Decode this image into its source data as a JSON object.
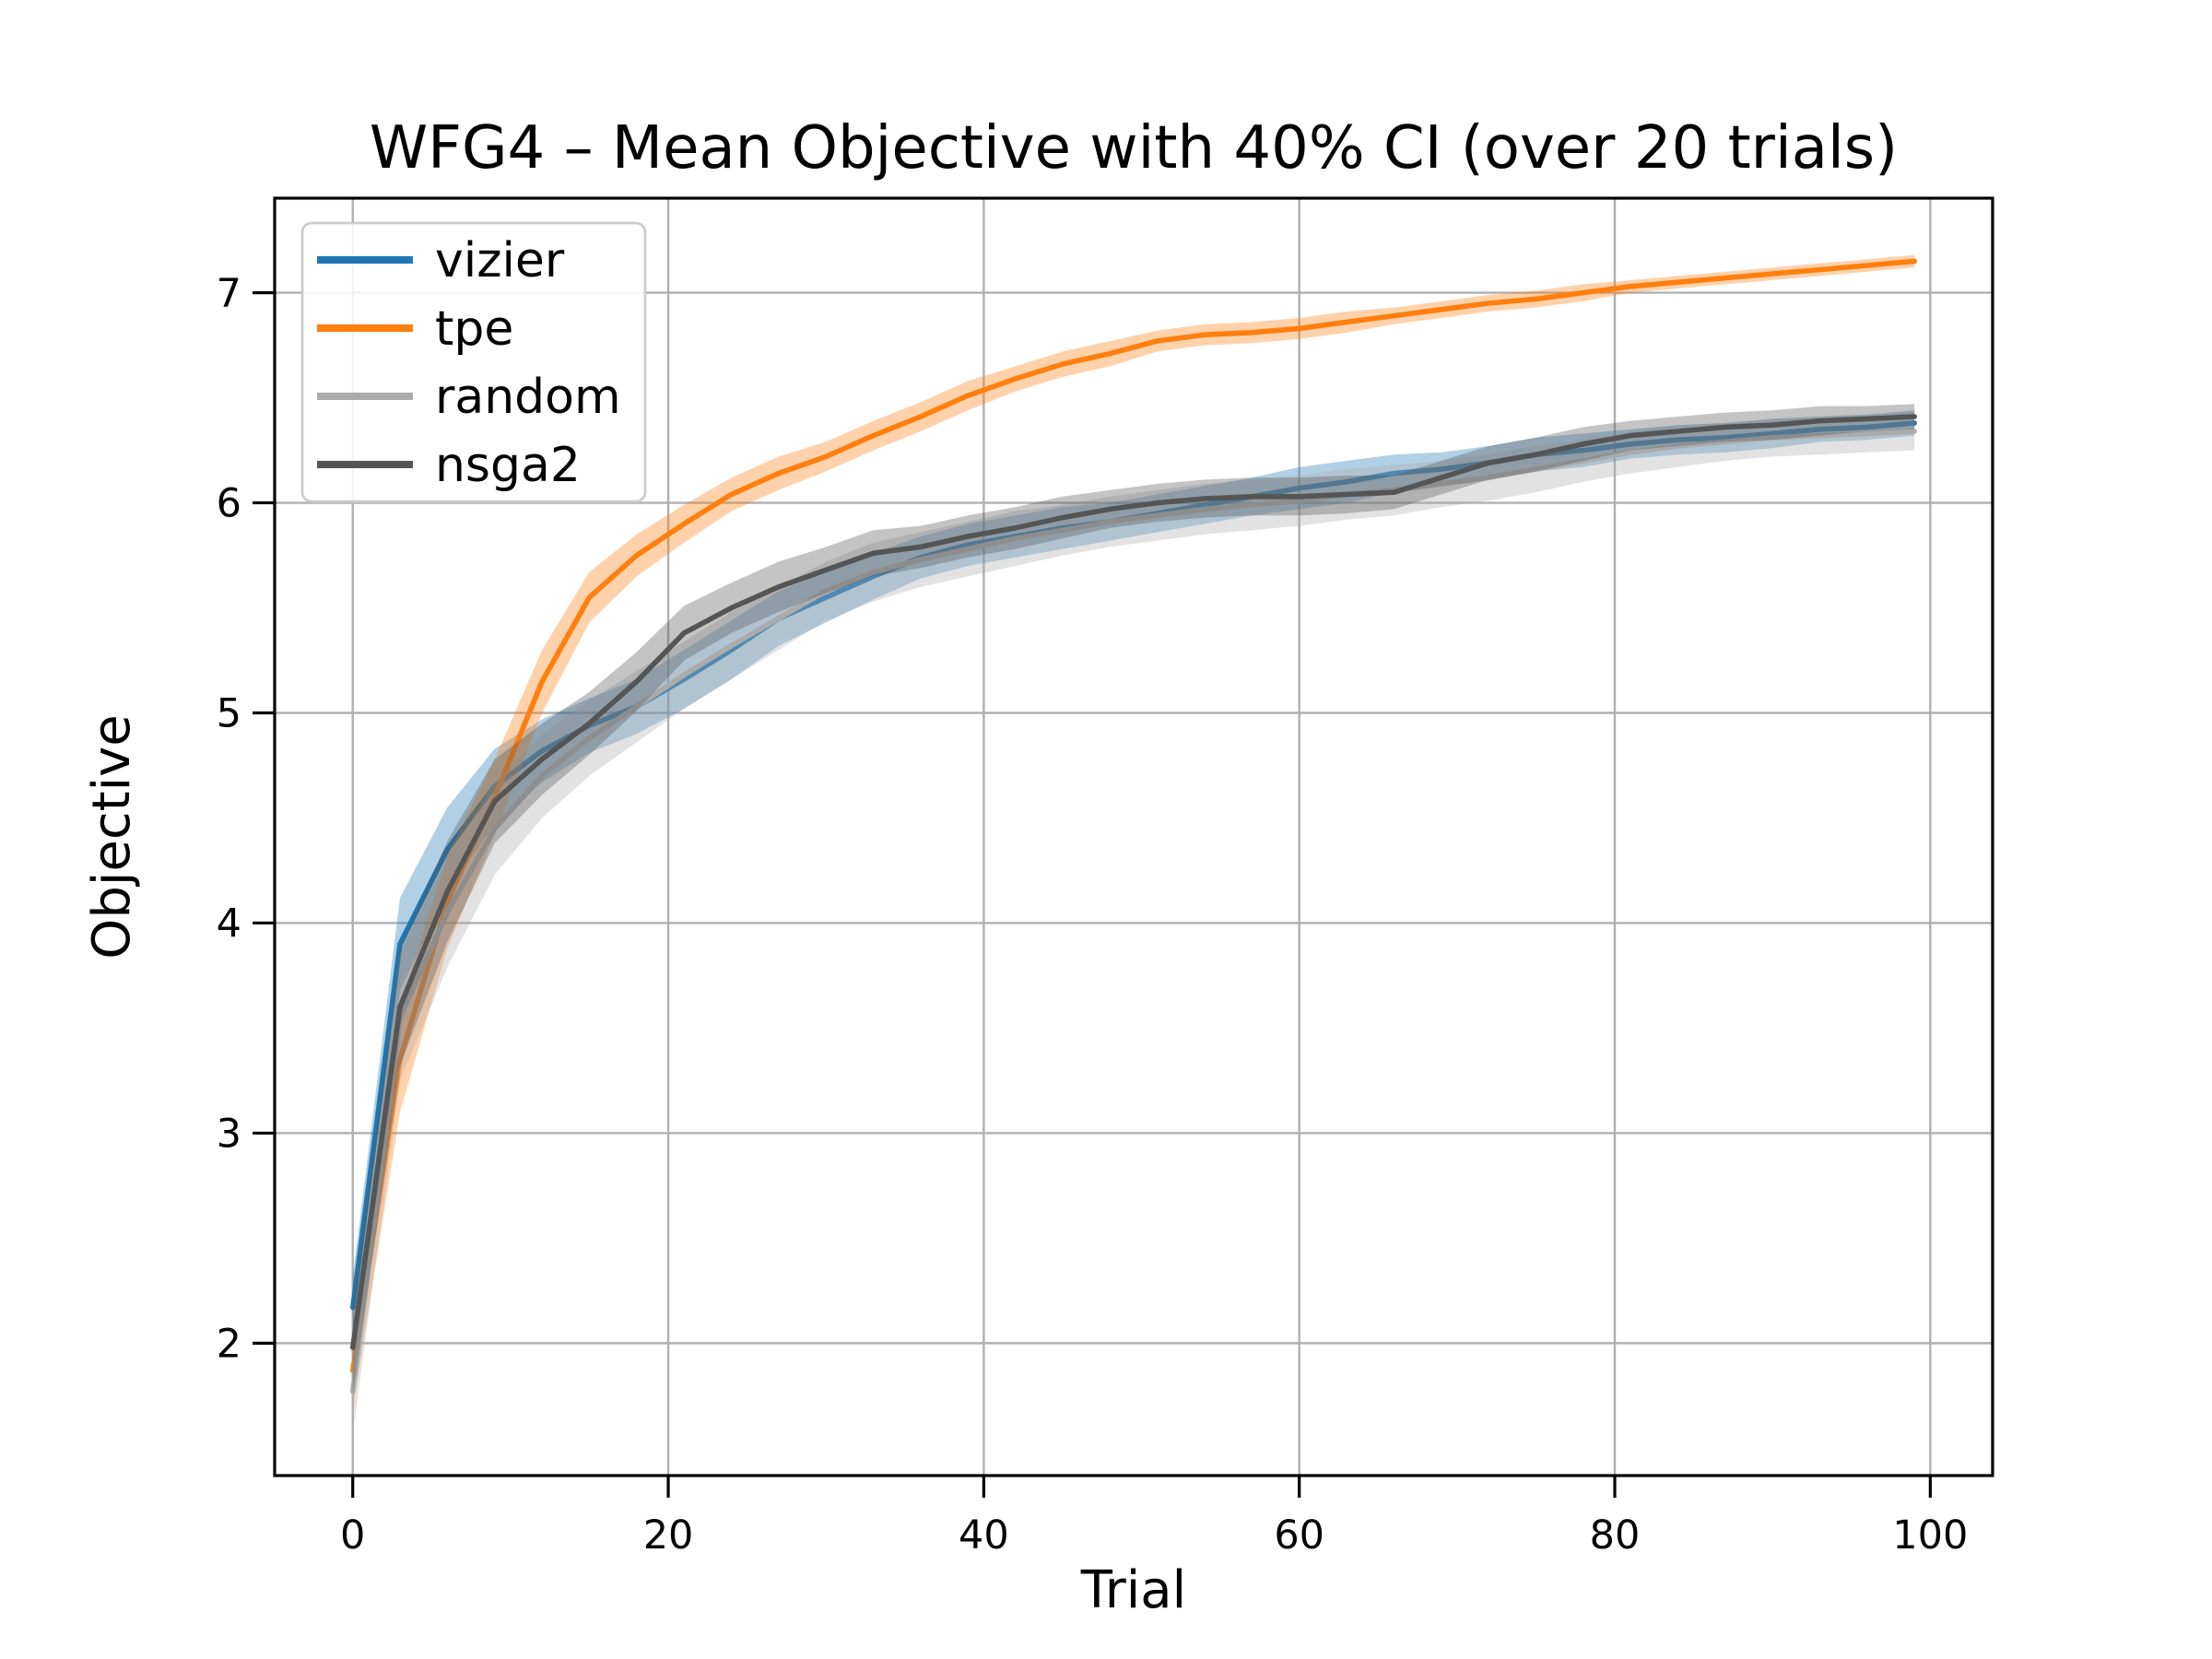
{
  "figure": {
    "background": "#ffffff",
    "grid_color": "#b0b0b0",
    "spine_color": "#000000",
    "legend_border_color": "#cccccc",
    "legend_background": "#ffffff"
  },
  "chart_data": {
    "type": "line",
    "title": "WFG4 – Mean Objective with 40% CI (over 20 trials)",
    "xlabel": "Trial",
    "ylabel": "Objective",
    "xlim": [
      -4.95,
      103.95
    ],
    "ylim": [
      1.37,
      7.45
    ],
    "xticks": [
      0,
      20,
      40,
      60,
      80,
      100
    ],
    "yticks": [
      2,
      3,
      4,
      5,
      6,
      7
    ],
    "grid": true,
    "legend_position": "upper left",
    "band_meaning": "40% confidence interval of the mean over 20 trials",
    "band_alpha": 0.35,
    "x": [
      0,
      3,
      6,
      9,
      12,
      15,
      18,
      21,
      24,
      27,
      30,
      33,
      36,
      39,
      42,
      45,
      48,
      51,
      54,
      57,
      60,
      63,
      66,
      69,
      72,
      75,
      78,
      81,
      84,
      87,
      90,
      93,
      96,
      99
    ],
    "series": [
      {
        "name": "vizier",
        "color": "#1f77b4",
        "mean": [
          2.17,
          3.9,
          4.35,
          4.65,
          4.82,
          4.94,
          5.03,
          5.16,
          5.3,
          5.45,
          5.55,
          5.65,
          5.74,
          5.8,
          5.84,
          5.88,
          5.91,
          5.95,
          5.99,
          6.03,
          6.07,
          6.1,
          6.14,
          6.16,
          6.19,
          6.23,
          6.25,
          6.28,
          6.3,
          6.31,
          6.33,
          6.35,
          6.36,
          6.38
        ],
        "ci": [
          0.15,
          0.22,
          0.2,
          0.18,
          0.15,
          0.13,
          0.13,
          0.14,
          0.14,
          0.13,
          0.12,
          0.11,
          0.1,
          0.1,
          0.1,
          0.1,
          0.09,
          0.09,
          0.09,
          0.09,
          0.1,
          0.1,
          0.09,
          0.08,
          0.08,
          0.08,
          0.08,
          0.07,
          0.07,
          0.07,
          0.07,
          0.06,
          0.06,
          0.06
        ]
      },
      {
        "name": "tpe",
        "color": "#ff7f0e",
        "mean": [
          1.87,
          3.35,
          4.1,
          4.6,
          5.15,
          5.55,
          5.75,
          5.9,
          6.04,
          6.14,
          6.22,
          6.32,
          6.41,
          6.51,
          6.59,
          6.66,
          6.71,
          6.77,
          6.8,
          6.81,
          6.83,
          6.86,
          6.89,
          6.92,
          6.95,
          6.97,
          7.0,
          7.03,
          7.05,
          7.07,
          7.09,
          7.11,
          7.13,
          7.15
        ],
        "ci": [
          0.18,
          0.25,
          0.22,
          0.18,
          0.15,
          0.12,
          0.1,
          0.09,
          0.08,
          0.08,
          0.07,
          0.07,
          0.07,
          0.07,
          0.06,
          0.06,
          0.06,
          0.05,
          0.05,
          0.05,
          0.05,
          0.05,
          0.04,
          0.04,
          0.04,
          0.04,
          0.04,
          0.03,
          0.03,
          0.03,
          0.03,
          0.03,
          0.03,
          0.03
        ]
      },
      {
        "name": "random",
        "color": "#ababab",
        "mean": [
          1.77,
          3.55,
          4.05,
          4.45,
          4.7,
          4.88,
          5.03,
          5.18,
          5.32,
          5.45,
          5.58,
          5.67,
          5.73,
          5.78,
          5.83,
          5.87,
          5.91,
          5.94,
          5.97,
          5.99,
          6.01,
          6.04,
          6.06,
          6.09,
          6.12,
          6.16,
          6.2,
          6.24,
          6.27,
          6.29,
          6.31,
          6.32,
          6.33,
          6.34
        ],
        "ci": [
          0.2,
          0.3,
          0.26,
          0.22,
          0.2,
          0.18,
          0.17,
          0.16,
          0.16,
          0.15,
          0.14,
          0.14,
          0.13,
          0.13,
          0.13,
          0.12,
          0.12,
          0.12,
          0.12,
          0.12,
          0.12,
          0.12,
          0.12,
          0.11,
          0.11,
          0.11,
          0.1,
          0.1,
          0.1,
          0.09,
          0.09,
          0.09,
          0.09,
          0.09
        ]
      },
      {
        "name": "nsga2",
        "color": "#555555",
        "mean": [
          1.98,
          3.6,
          4.15,
          4.58,
          4.78,
          4.95,
          5.15,
          5.38,
          5.5,
          5.6,
          5.68,
          5.76,
          5.79,
          5.84,
          5.88,
          5.93,
          5.97,
          6.0,
          6.02,
          6.03,
          6.03,
          6.04,
          6.05,
          6.12,
          6.19,
          6.23,
          6.28,
          6.32,
          6.34,
          6.36,
          6.37,
          6.39,
          6.4,
          6.41
        ],
        "ci": [
          0.22,
          0.28,
          0.24,
          0.2,
          0.17,
          0.15,
          0.14,
          0.13,
          0.12,
          0.12,
          0.11,
          0.11,
          0.1,
          0.1,
          0.1,
          0.1,
          0.09,
          0.09,
          0.09,
          0.09,
          0.09,
          0.09,
          0.08,
          0.08,
          0.08,
          0.08,
          0.08,
          0.07,
          0.07,
          0.07,
          0.07,
          0.07,
          0.06,
          0.06
        ]
      }
    ]
  }
}
